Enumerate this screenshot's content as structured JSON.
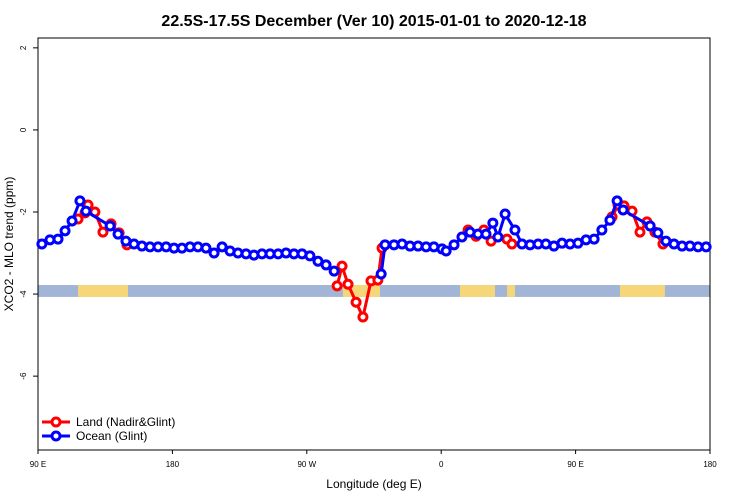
{
  "chart_data": {
    "type": "line",
    "title": "22.5S-17.5S December (Ver 10)   2015-01-01 to 2020-12-18",
    "x_label": "Longitude (deg E)",
    "y_label": "XCO2 - MLO trend (ppm)",
    "xlim": [
      90,
      540
    ],
    "ylim": [
      -7.8,
      2.24
    ],
    "xticks": [
      {
        "value": 90,
        "label": "90 E"
      },
      {
        "value": 180,
        "label": "180"
      },
      {
        "value": 270,
        "label": "90 W"
      },
      {
        "value": 360,
        "label": "0"
      },
      {
        "value": 450,
        "label": "90 E"
      },
      {
        "value": 540,
        "label": "180"
      }
    ],
    "yticks": [
      2,
      0,
      -2,
      -4,
      -6
    ],
    "legend": "bottom-left",
    "land_strip": {
      "ylim": [
        -3.78,
        -4.07
      ],
      "ocean_color": "#a2b5d6",
      "land_color": "#f5d77a",
      "land": [
        [
          116.8,
          150.3
        ],
        [
          294.2,
          319
        ],
        [
          372.6,
          396
        ],
        [
          404.1,
          409.4
        ],
        [
          479.7,
          509.8
        ]
      ]
    },
    "series": [
      {
        "name": "Land (Nadir&Glint)",
        "color": "#ff0000",
        "x": [
          116.8,
          121.5,
          123.5,
          128.1,
          133.5,
          138.9,
          144.3,
          149.6,
          227.5,
          290.3,
          293.6,
          297.6,
          303,
          307.6,
          313,
          317.6,
          320.4,
          352.5,
          378,
          383.3,
          388.6,
          393.4,
          398.8,
          404,
          407.4,
          440,
          474.4,
          478.4,
          482.4,
          487.8,
          493.1,
          497.8,
          503.1,
          508.5
        ],
        "values": [
          -2.17,
          -2.02,
          -1.83,
          -2.0,
          -2.49,
          -2.29,
          -2.51,
          -2.8,
          null,
          -3.8,
          -3.32,
          -3.76,
          -4.2,
          -4.56,
          -3.68,
          -3.66,
          -2.88,
          null,
          -2.44,
          -2.59,
          -2.44,
          -2.71,
          null,
          -2.66,
          -2.78,
          null,
          -2.12,
          -1.83,
          -1.85,
          -1.98,
          -2.49,
          -2.24,
          -2.49,
          -2.78
        ]
      },
      {
        "name": "Ocean (Glint)",
        "color": "#0000ff",
        "x": [
          92.6,
          98,
          103.4,
          108.1,
          112.8,
          118.1,
          122.1,
          138.3,
          143.6,
          148.9,
          154.3,
          159.6,
          165,
          170.4,
          175.8,
          181.1,
          186.4,
          191.8,
          197.1,
          202.5,
          207.9,
          213.3,
          218.6,
          223.9,
          229.3,
          234.6,
          240,
          245.4,
          250.8,
          256.1,
          261.4,
          266.8,
          272.1,
          277.5,
          282.9,
          288.3,
          302.5,
          319.8,
          322.4,
          328.4,
          333.8,
          339.1,
          344.5,
          349.9,
          355.1,
          360.5,
          363.3,
          368.6,
          373.9,
          379.3,
          384.6,
          390,
          394.6,
          398,
          402.8,
          409.4,
          414.1,
          419.5,
          424.9,
          430.1,
          435.5,
          440.9,
          446.3,
          451.6,
          457,
          462.4,
          467.6,
          473,
          477.8,
          481.8,
          499.9,
          505.1,
          510.5,
          515.9,
          521.3,
          526.6,
          532,
          537.4
        ],
        "values": [
          -2.78,
          -2.68,
          -2.66,
          -2.46,
          -2.22,
          -1.73,
          -1.98,
          -2.34,
          -2.54,
          -2.71,
          -2.78,
          -2.83,
          -2.85,
          -2.85,
          -2.85,
          -2.88,
          -2.88,
          -2.85,
          -2.85,
          -2.88,
          -3.0,
          -2.85,
          -2.95,
          -3.0,
          -3.02,
          -3.05,
          -3.02,
          -3.02,
          -3.02,
          -3.0,
          -3.02,
          -3.02,
          -3.07,
          -3.2,
          -3.29,
          -3.44,
          null,
          -3.51,
          -2.8,
          -2.8,
          -2.78,
          -2.83,
          -2.83,
          -2.85,
          -2.85,
          -2.9,
          -2.95,
          -2.8,
          -2.61,
          -2.49,
          -2.54,
          -2.54,
          -2.27,
          -2.61,
          -2.05,
          -2.44,
          -2.78,
          -2.8,
          -2.78,
          -2.78,
          -2.83,
          -2.76,
          -2.78,
          -2.76,
          -2.68,
          -2.66,
          -2.44,
          -2.2,
          -1.73,
          -1.95,
          -2.34,
          -2.51,
          -2.71,
          -2.78,
          -2.83,
          -2.83,
          -2.85,
          -2.85
        ]
      }
    ]
  }
}
